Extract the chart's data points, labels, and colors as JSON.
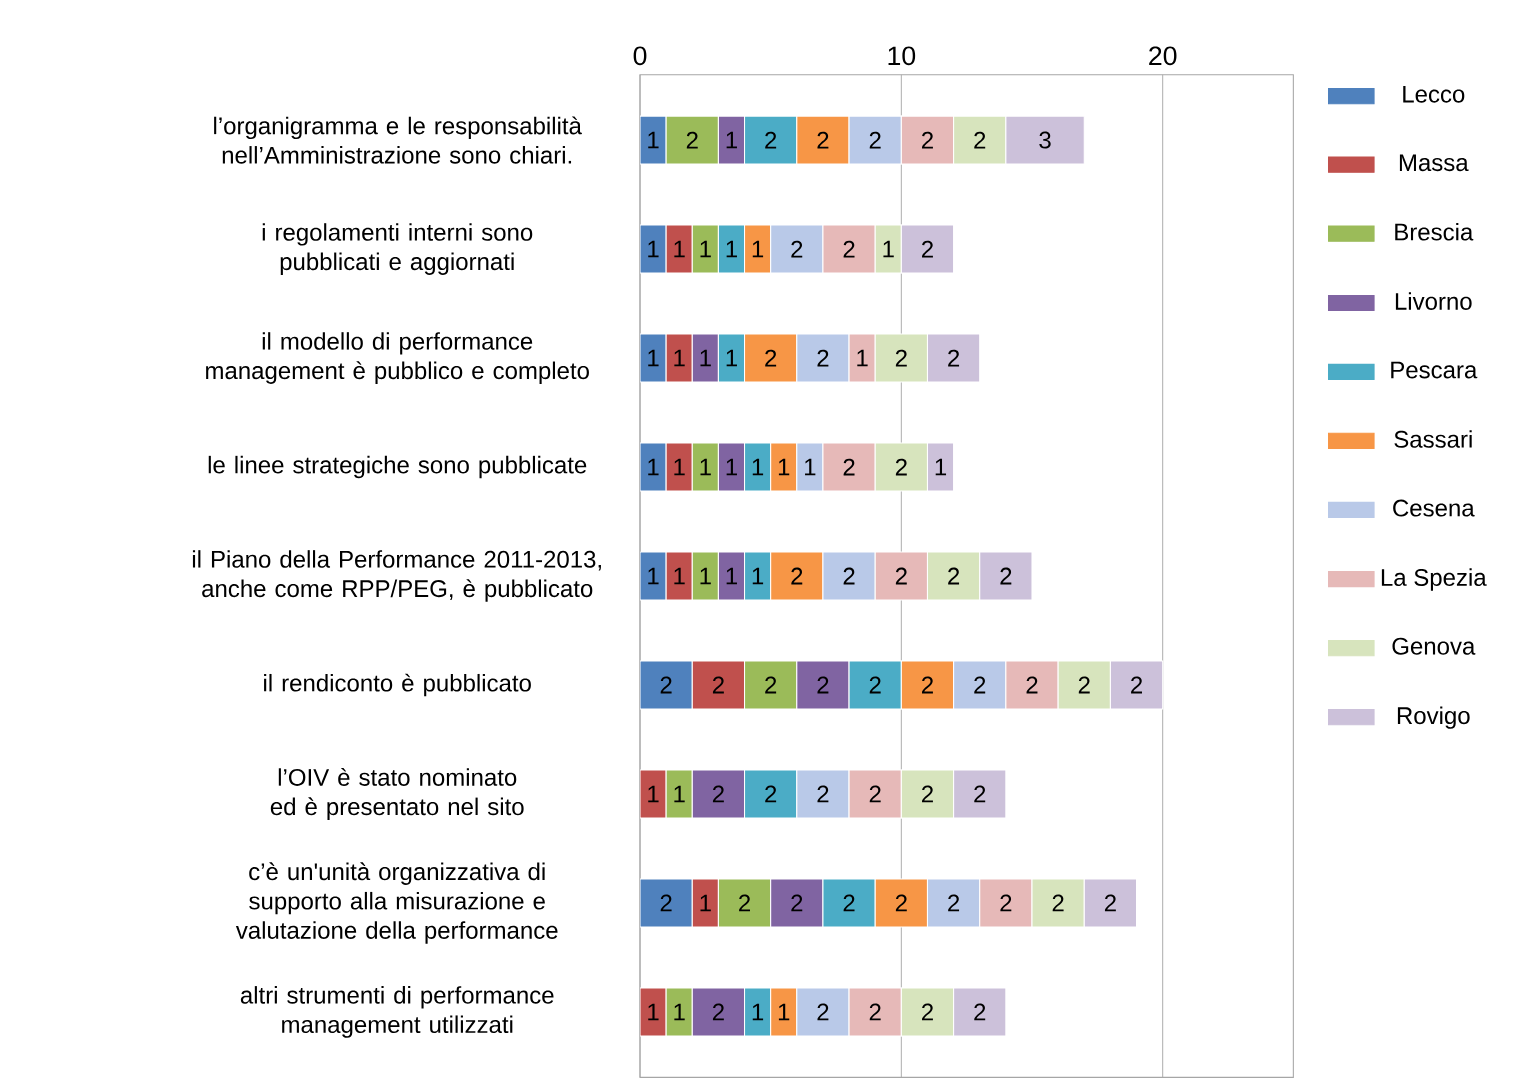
{
  "chart_data": {
    "type": "bar",
    "orientation": "horizontal",
    "stacked": true,
    "data_labels": true,
    "grid": "x",
    "legend": "right",
    "categories": [
      "l’organigramma e le responsabilità nell’Amministrazione sono chiari.",
      "i regolamenti interni sono pubblicati e aggiornati",
      "il  modello di performance management è pubblico e completo",
      "le  linee strategiche sono pubblicate",
      "il Piano della Performance 2011-2013, anche come RPP/PEG, è pubblicato",
      "il rendiconto è  pubblicato",
      "l’OIV è stato nominato ed è presentato nel sito",
      "c’è un'unità organizzativa di supporto alla misurazione e valutazione della performance",
      "altri strumenti di performance management utilizzati"
    ],
    "xlim": [
      0,
      25
    ],
    "xticks": [
      0,
      10,
      20
    ],
    "series": [
      {
        "name": "Lecco",
        "color": "#4f81bd",
        "values": [
          1,
          1,
          1,
          1,
          1,
          2,
          null,
          2,
          null
        ]
      },
      {
        "name": "Massa",
        "color": "#c0504d",
        "values": [
          null,
          1,
          1,
          1,
          1,
          2,
          1,
          1,
          1
        ]
      },
      {
        "name": "Brescia",
        "color": "#9bbb59",
        "values": [
          2,
          1,
          null,
          1,
          1,
          2,
          1,
          2,
          1
        ]
      },
      {
        "name": "Livorno",
        "color": "#8064a2",
        "values": [
          1,
          null,
          1,
          1,
          1,
          2,
          2,
          2,
          2
        ]
      },
      {
        "name": "Pescara",
        "color": "#4bacc6",
        "values": [
          2,
          1,
          1,
          1,
          1,
          2,
          2,
          2,
          1
        ]
      },
      {
        "name": "Sassari",
        "color": "#f79646",
        "values": [
          2,
          1,
          2,
          1,
          2,
          2,
          null,
          2,
          1
        ]
      },
      {
        "name": "Cesena",
        "color": "#b9c9e8",
        "values": [
          2,
          2,
          2,
          1,
          2,
          2,
          2,
          2,
          2
        ]
      },
      {
        "name": "La Spezia",
        "color": "#e6b9b8",
        "values": [
          2,
          2,
          1,
          2,
          2,
          2,
          2,
          2,
          2
        ]
      },
      {
        "name": "Genova",
        "color": "#d7e4bd",
        "values": [
          2,
          1,
          2,
          2,
          2,
          2,
          2,
          2,
          2
        ]
      },
      {
        "name": "Rovigo",
        "color": "#ccc1da",
        "values": [
          3,
          2,
          2,
          1,
          2,
          2,
          2,
          2,
          2
        ]
      }
    ]
  }
}
